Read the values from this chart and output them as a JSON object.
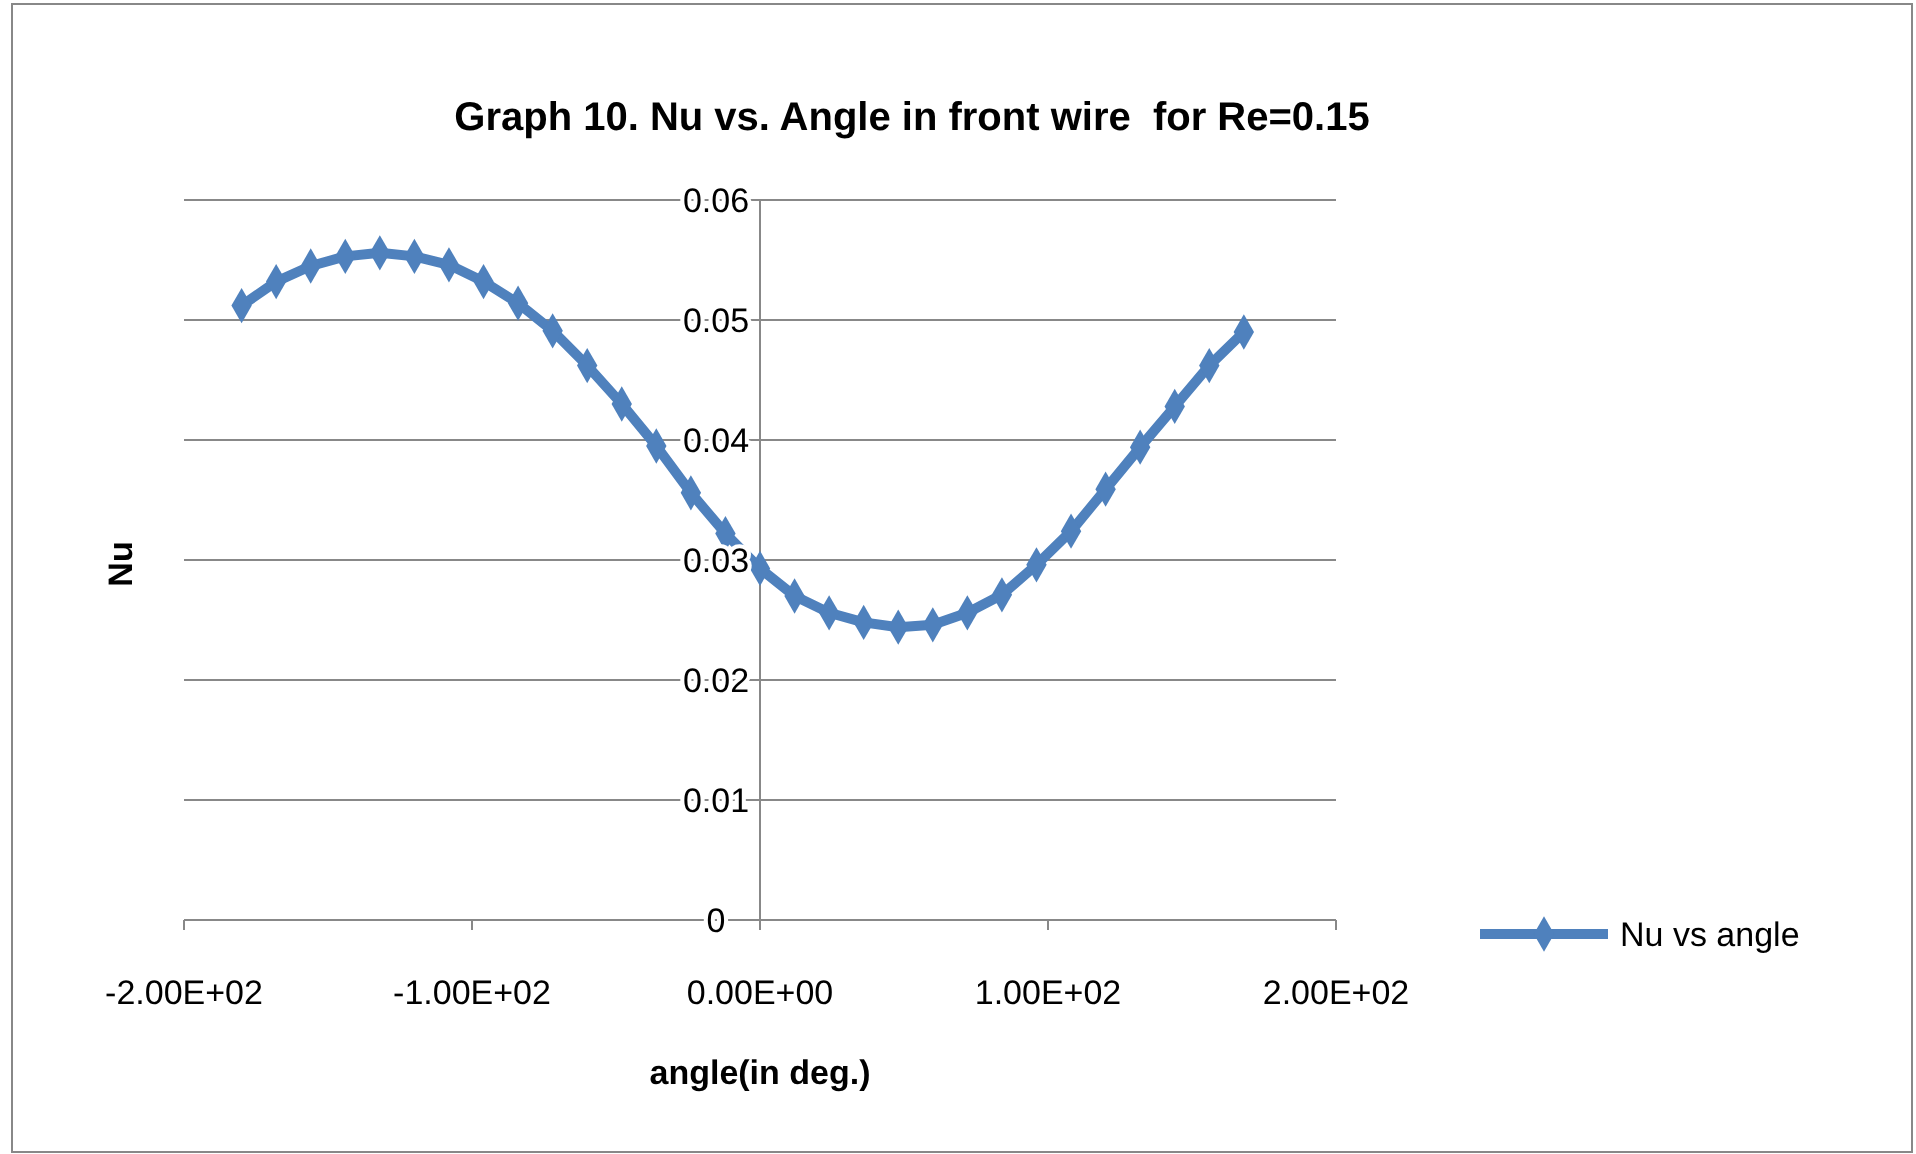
{
  "chart_data": {
    "type": "line",
    "title": "Graph 10. Nu vs. Angle in front wire  for Re=0.15",
    "xlabel": "angle(in deg.)",
    "ylabel": "Nu",
    "series": [
      {
        "name": "Nu vs angle",
        "color": "#4f81bd",
        "x": [
          -180,
          -168,
          -156,
          -144,
          -132,
          -120,
          -108,
          -96,
          -84,
          -72,
          -60,
          -48,
          -36,
          -24,
          -12,
          0,
          12,
          24,
          36,
          48,
          60,
          72,
          84,
          96,
          108,
          120,
          132,
          144,
          156,
          168
        ],
        "values": [
          0.0512,
          0.0532,
          0.0545,
          0.0553,
          0.0556,
          0.0553,
          0.0546,
          0.0532,
          0.0514,
          0.0491,
          0.0462,
          0.043,
          0.0395,
          0.0356,
          0.0322,
          0.0293,
          0.027,
          0.0256,
          0.0248,
          0.0244,
          0.0246,
          0.0256,
          0.0271,
          0.0296,
          0.0324,
          0.0359,
          0.0394,
          0.0428,
          0.0462,
          0.049
        ]
      }
    ],
    "xlim": [
      -200,
      200
    ],
    "xticks": [
      {
        "value": -200,
        "label": "-2.00E+02"
      },
      {
        "value": -100,
        "label": "-1.00E+02"
      },
      {
        "value": 0,
        "label": "0.00E+00"
      },
      {
        "value": 100,
        "label": "1.00E+02"
      },
      {
        "value": 200,
        "label": "2.00E+02"
      }
    ],
    "ylim": [
      0,
      0.06
    ],
    "yticks": [
      0,
      0.01,
      0.02,
      0.03,
      0.04,
      0.05,
      0.06
    ],
    "grid": "y",
    "legend": "right",
    "marker": "diamond",
    "line_style": "solid"
  }
}
